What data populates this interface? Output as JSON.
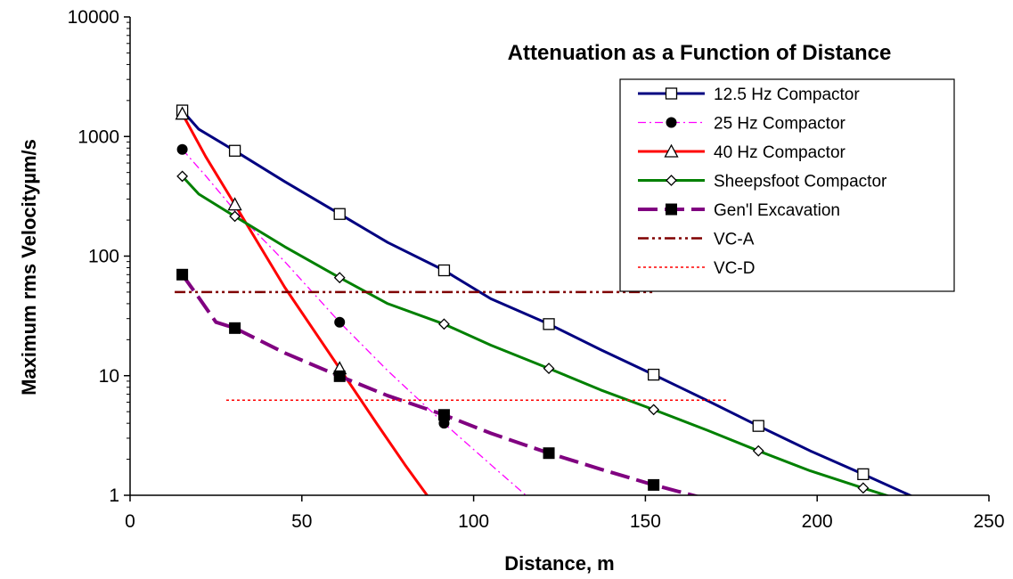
{
  "chart_data": {
    "type": "line",
    "title": "Attenuation as  a Function of Distance",
    "xlabel": "Distance, m",
    "ylabel": "Maximum rms Velocityµm/s",
    "xlim": [
      0,
      250
    ],
    "ylim": [
      1,
      10000
    ],
    "yscale": "log",
    "xticks": [
      "0",
      "50",
      "100",
      "150",
      "200",
      "250"
    ],
    "yticks": [
      "1",
      "10",
      "100",
      "1000",
      "10000"
    ],
    "grid": false,
    "legend_position": "top-right",
    "series": [
      {
        "name": "12.5 Hz Compactor",
        "color": "#000080",
        "line": "solid",
        "marker": "open-square",
        "x": [
          15.2,
          30.5,
          61,
          91.4,
          121.9,
          152.4,
          182.9,
          213.4
        ],
        "y": [
          1650,
          760,
          225,
          76,
          27,
          10.2,
          3.8,
          1.5
        ],
        "curve_x": [
          15.2,
          20,
          30.5,
          45,
          61,
          75,
          91.4,
          105,
          121.9,
          137,
          152.4,
          168,
          182.9,
          198,
          213.4,
          228,
          232
        ],
        "curve_y": [
          1650,
          1150,
          760,
          420,
          225,
          130,
          76,
          44,
          27,
          16.5,
          10.2,
          6.2,
          3.8,
          2.35,
          1.5,
          0.97,
          0.88
        ]
      },
      {
        "name": "25 Hz Compactor",
        "color": "#ff00ff",
        "line": "dashdot-thin",
        "marker": "filled-circle",
        "x": [
          15.2,
          61,
          91.4
        ],
        "y": [
          780,
          28,
          4
        ],
        "curve_x": [
          15.2,
          22,
          30.5,
          45,
          61,
          75,
          91.4,
          105,
          117
        ],
        "curve_y": [
          780,
          470,
          240,
          90,
          28,
          11,
          4,
          1.8,
          0.9
        ]
      },
      {
        "name": "40 Hz Compactor",
        "color": "#ff0000",
        "line": "solid",
        "marker": "open-triangle",
        "x": [
          15.2,
          30.5,
          61
        ],
        "y": [
          1550,
          270,
          11.5
        ],
        "curve_x": [
          15.2,
          22,
          30.5,
          45,
          61,
          72,
          80,
          87,
          90
        ],
        "curve_y": [
          1550,
          680,
          270,
          55,
          11.5,
          3.9,
          1.8,
          0.95,
          0.7
        ]
      },
      {
        "name": "Sheepsfoot Compactor",
        "color": "#008000",
        "line": "solid",
        "marker": "open-diamond",
        "x": [
          15.2,
          30.5,
          61,
          91.4,
          121.9,
          152.4,
          182.9,
          213.4
        ],
        "y": [
          465,
          215,
          66,
          27,
          11.5,
          5.2,
          2.35,
          1.15
        ],
        "curve_x": [
          15.2,
          20,
          30.5,
          45,
          61,
          75,
          91.4,
          105,
          121.9,
          137,
          152.4,
          168,
          182.9,
          198,
          213.4,
          225,
          235
        ],
        "curve_y": [
          465,
          330,
          215,
          120,
          66,
          40,
          27,
          18,
          11.5,
          7.6,
          5.2,
          3.5,
          2.35,
          1.6,
          1.15,
          0.9,
          0.82
        ]
      },
      {
        "name": "Gen'l Excavation",
        "color": "#800080",
        "line": "long-dash",
        "marker": "filled-square",
        "x": [
          15.2,
          30.5,
          61,
          91.4,
          121.9,
          152.4
        ],
        "y": [
          70,
          25,
          9.9,
          4.7,
          2.25,
          1.22
        ],
        "curve_x": [
          15.2,
          20,
          25,
          30.5,
          45,
          61,
          75,
          91.4,
          105,
          121.9,
          137,
          152.4,
          165,
          178
        ],
        "curve_y": [
          70,
          45,
          28,
          25,
          15.5,
          9.9,
          6.8,
          4.7,
          3.3,
          2.25,
          1.65,
          1.22,
          0.98,
          0.8
        ]
      },
      {
        "name": "VC-A",
        "color": "#800000",
        "line": "dashdotdot",
        "marker": "none",
        "x": [
          13,
          152.4
        ],
        "y": [
          50,
          50
        ]
      },
      {
        "name": "VC-D",
        "color": "#ff0000",
        "line": "dotted",
        "marker": "none",
        "x": [
          28,
          174
        ],
        "y": [
          6.25,
          6.25
        ]
      }
    ]
  }
}
